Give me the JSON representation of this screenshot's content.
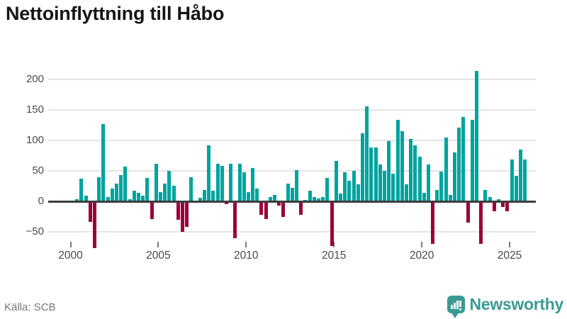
{
  "header": {
    "title": "Nettoinflyttning till Håbo"
  },
  "footer": {
    "source": "Källa: SCB",
    "brand": "Newsworthy"
  },
  "colors": {
    "positive": "#00a39e",
    "negative": "#9b0238",
    "brand_teal": "#3a9a93",
    "axis_line": "#3d3d3d",
    "gridline": "#e4e4e4"
  },
  "chart_data": {
    "type": "bar",
    "title": "Nettoinflyttning till Håbo",
    "x_start": "2000-Q1",
    "frequency": "quarterly",
    "xlabel": "",
    "ylabel": "",
    "ylim": [
      -90,
      230
    ],
    "grid": "horizontal",
    "legend": "none",
    "x_tick_labels": [
      "2000",
      "2005",
      "2010",
      "2015",
      "2020",
      "2025"
    ],
    "x_tick_years": [
      2000,
      2005,
      2010,
      2015,
      2020,
      2025
    ],
    "y_tick_labels": [
      "200",
      "150",
      "100",
      "50",
      "0",
      "−50"
    ],
    "y_tick_values": [
      200,
      150,
      100,
      50,
      0,
      -50
    ],
    "positive_color": "#00a39e",
    "negative_color": "#9b0238",
    "values": [
      0,
      4,
      37,
      9,
      -33,
      -75,
      40,
      127,
      7,
      21,
      29,
      43,
      57,
      3,
      17,
      14,
      9,
      38,
      -28,
      61,
      15,
      29,
      50,
      25,
      -29,
      -49,
      -41,
      39,
      0,
      6,
      19,
      92,
      17,
      62,
      58,
      -4,
      62,
      -59,
      62,
      48,
      15,
      54,
      21,
      -21,
      -28,
      7,
      10,
      -6,
      -24,
      29,
      22,
      51,
      -21,
      2,
      17,
      7,
      5,
      7,
      38,
      -72,
      66,
      13,
      48,
      34,
      50,
      28,
      111,
      155,
      88,
      88,
      60,
      50,
      99,
      45,
      133,
      115,
      28,
      102,
      92,
      73,
      14,
      60,
      -69,
      19,
      49,
      104,
      10,
      80,
      121,
      138,
      -34,
      133,
      214,
      -69,
      18,
      7,
      -15,
      4,
      -8,
      -15,
      69,
      42,
      85,
      68
    ]
  }
}
